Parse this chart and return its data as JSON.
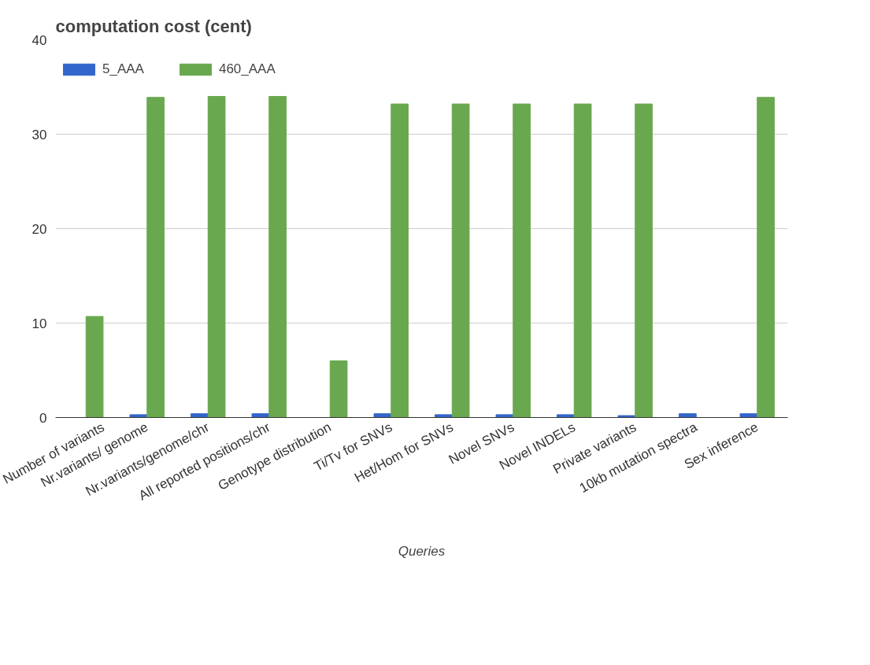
{
  "chart_data": {
    "type": "bar",
    "title": "computation cost (cent)",
    "xlabel": "Queries",
    "categories": [
      "Number of variants",
      "Nr.variants/ genome",
      "Nr.variants/genome/chr",
      "All reported positions/chr",
      "Genotype distribution",
      "Ti/Tv for SNVs",
      "Het/Hom for SNVs",
      "Novel SNVs",
      "Novel INDELs",
      "Private variants",
      "10kb mutation spectra",
      "Sex inference"
    ],
    "series": [
      {
        "name": "5_AAA",
        "color": "#3366cc",
        "values": [
          null,
          0.3,
          0.4,
          0.4,
          null,
          0.4,
          0.3,
          0.3,
          0.3,
          0.2,
          0.4,
          0.4
        ]
      },
      {
        "name": "460_AAA",
        "color": "#6aa84f",
        "values": [
          10.7,
          33.9,
          34.0,
          34.0,
          6.0,
          33.2,
          33.2,
          33.2,
          33.2,
          33.2,
          null,
          33.9
        ]
      }
    ],
    "ylim": [
      0,
      40
    ],
    "yticks": [
      0,
      10,
      20,
      30,
      40
    ],
    "grid": "y",
    "legend": "top left"
  }
}
